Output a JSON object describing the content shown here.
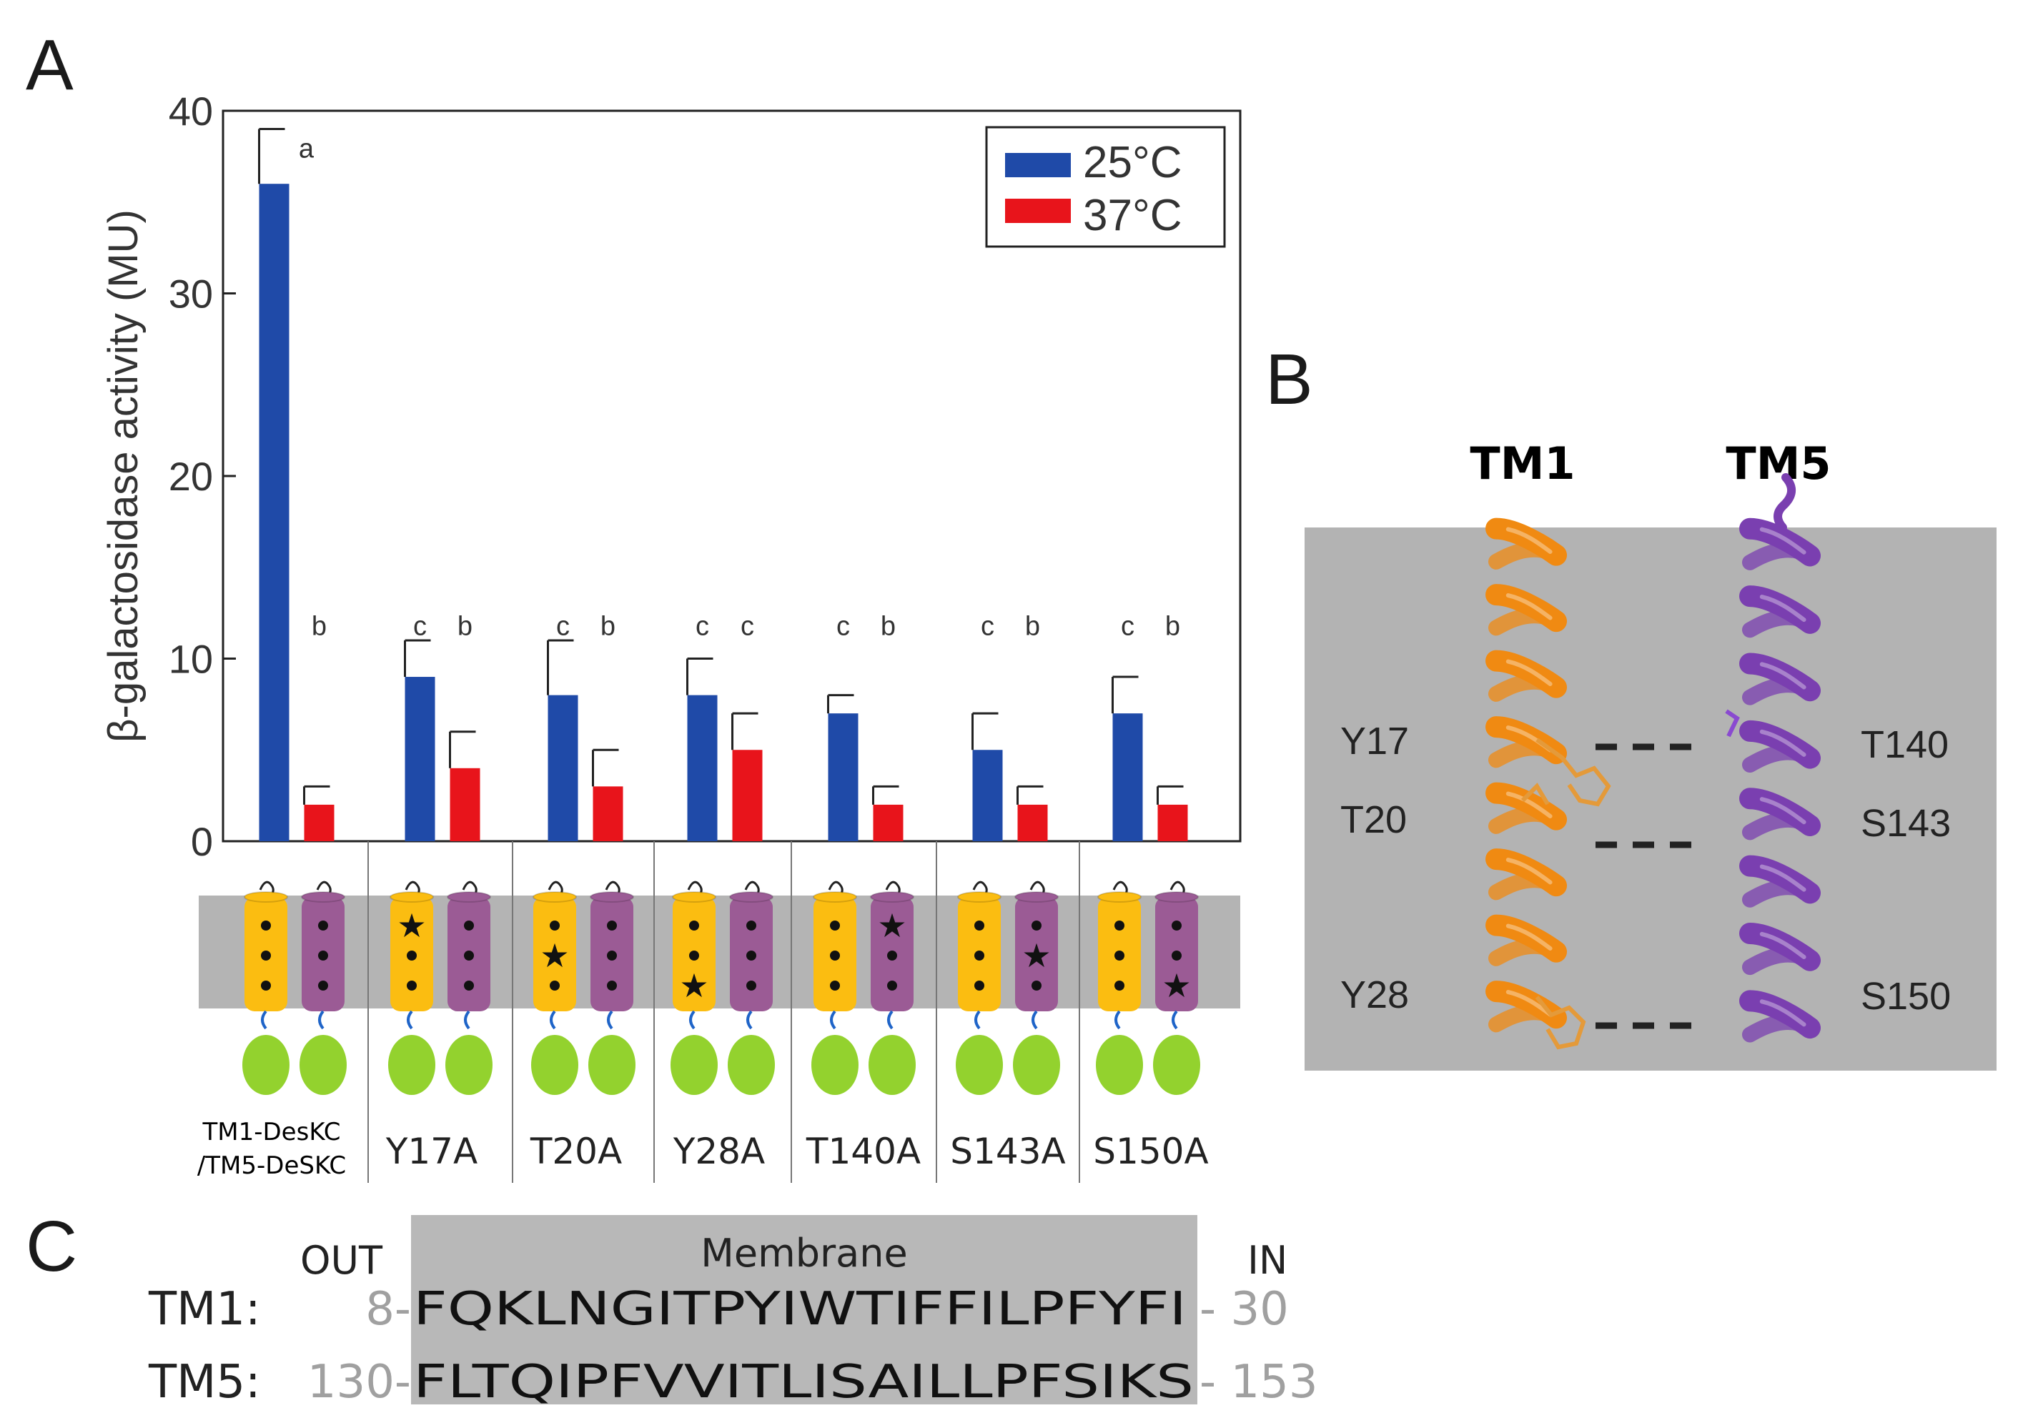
{
  "panels": {
    "a": "A",
    "b": "B",
    "c": "C"
  },
  "chart_data": {
    "type": "bar",
    "ylabel": "β-galactosidase activity (MU)",
    "ylim": [
      0,
      40
    ],
    "yticks": [
      "0",
      "10",
      "20",
      "30",
      "40"
    ],
    "categories_top": [
      "TM1-DesKC",
      "Y17A",
      "T20A",
      "Y28A",
      "T140A",
      "S143A",
      "S150A"
    ],
    "category_sub": "/TM5-DeSKC",
    "legend_position": "top-right",
    "series": [
      {
        "name": "25°C",
        "color": "#1f4aa8",
        "values": [
          36,
          9,
          8,
          8,
          7,
          5,
          7
        ],
        "errors": [
          3,
          2,
          3,
          2,
          1,
          2,
          2
        ],
        "letters": [
          "a",
          "c",
          "c",
          "c",
          "c",
          "c",
          "c"
        ]
      },
      {
        "name": "37°C",
        "color": "#e8141b",
        "values": [
          2,
          4,
          3,
          5,
          2,
          2,
          2
        ],
        "errors": [
          1,
          2,
          2,
          2,
          1,
          1,
          1
        ],
        "letters": [
          "b",
          "b",
          "b",
          "c",
          "b",
          "b",
          "b"
        ]
      }
    ],
    "mutation_star": [
      {
        "helix": null,
        "pos": null
      },
      {
        "helix": "tm1",
        "pos": 0
      },
      {
        "helix": "tm1",
        "pos": 1
      },
      {
        "helix": "tm1",
        "pos": 2
      },
      {
        "helix": "tm5",
        "pos": 0
      },
      {
        "helix": "tm5",
        "pos": 1
      },
      {
        "helix": "tm5",
        "pos": 2
      }
    ],
    "colors": {
      "tm1": "#fbbd11",
      "tm5": "#9b5b95",
      "membrane": "#b4b4b4",
      "domain": "#93d22e",
      "linker": "#1f64c8"
    }
  },
  "panel_b": {
    "tm1": "TM1",
    "tm5": "TM5",
    "left_residues": [
      "Y17",
      "T20",
      "Y28"
    ],
    "right_residues": [
      "T140",
      "S143",
      "S150"
    ],
    "colors": {
      "membrane": "#b3b3b3",
      "tm1": "#f08a12",
      "tm5": "#7a3fb0"
    }
  },
  "panel_c": {
    "membrane_label": "Membrane",
    "out_label": "OUT",
    "in_label": "IN",
    "rows": [
      {
        "label": "TM1:",
        "start": "8-",
        "seq": "FQKLNGITPYIWTIFFILPFYFI",
        "end": "- 30"
      },
      {
        "label": "TM5:",
        "start": "130-",
        "seq": "FLTQIPFVVITLISAILLPFSIKS",
        "end": "- 153"
      }
    ]
  }
}
